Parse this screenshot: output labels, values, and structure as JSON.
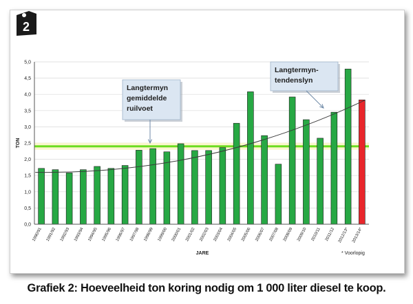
{
  "badge": {
    "number": "2"
  },
  "caption": "Grafiek 2: Hoeveelheid ton koring nodig om 1 000 liter diesel te koop.",
  "chart_data": {
    "type": "bar",
    "categories": [
      "1990/91",
      "1991/92",
      "1992/93",
      "1993/94",
      "1994/95",
      "1995/96",
      "1996/97",
      "1997/98",
      "1998/99",
      "1999/00",
      "2000/01",
      "2001/02",
      "2002/03",
      "2003/04",
      "2004/05",
      "2005/06",
      "2006/07",
      "2007/08",
      "2008/09",
      "2009/10",
      "2010/11",
      "2011/12",
      "2012/13*",
      "2013/14*"
    ],
    "values": [
      1.72,
      1.68,
      1.58,
      1.68,
      1.78,
      1.72,
      1.81,
      2.28,
      2.33,
      2.23,
      2.48,
      2.27,
      2.27,
      2.36,
      3.11,
      4.08,
      2.73,
      1.85,
      3.92,
      3.22,
      2.65,
      3.45,
      4.78,
      3.83
    ],
    "bar_color": "#27a844",
    "highlight_color": "#e8262b",
    "highlight_index": 23,
    "xlabel": "JARE",
    "ylabel": "TON",
    "ylim": [
      0,
      5
    ],
    "yticks": [
      "0,0",
      "0,5",
      "1,0",
      "1,5",
      "2,0",
      "2,5",
      "3,0",
      "3,5",
      "4,0",
      "4,5",
      "5,0"
    ],
    "average_line": {
      "value": 2.4,
      "color": "#6ddc20"
    },
    "trend_line": {
      "start": 1.6,
      "end": 3.82,
      "color": "#3a3a3a"
    },
    "footnote": "* Voorlopig",
    "annotations": [
      {
        "text": "Langtermyn gemiddelde ruilvoet",
        "lines": [
          "Langtermyn",
          "gemiddelde",
          "ruilvoet"
        ]
      },
      {
        "text": "Langtermyn- tendenslyn",
        "lines": [
          "Langtermyn-",
          "tendenslyn"
        ]
      }
    ]
  }
}
